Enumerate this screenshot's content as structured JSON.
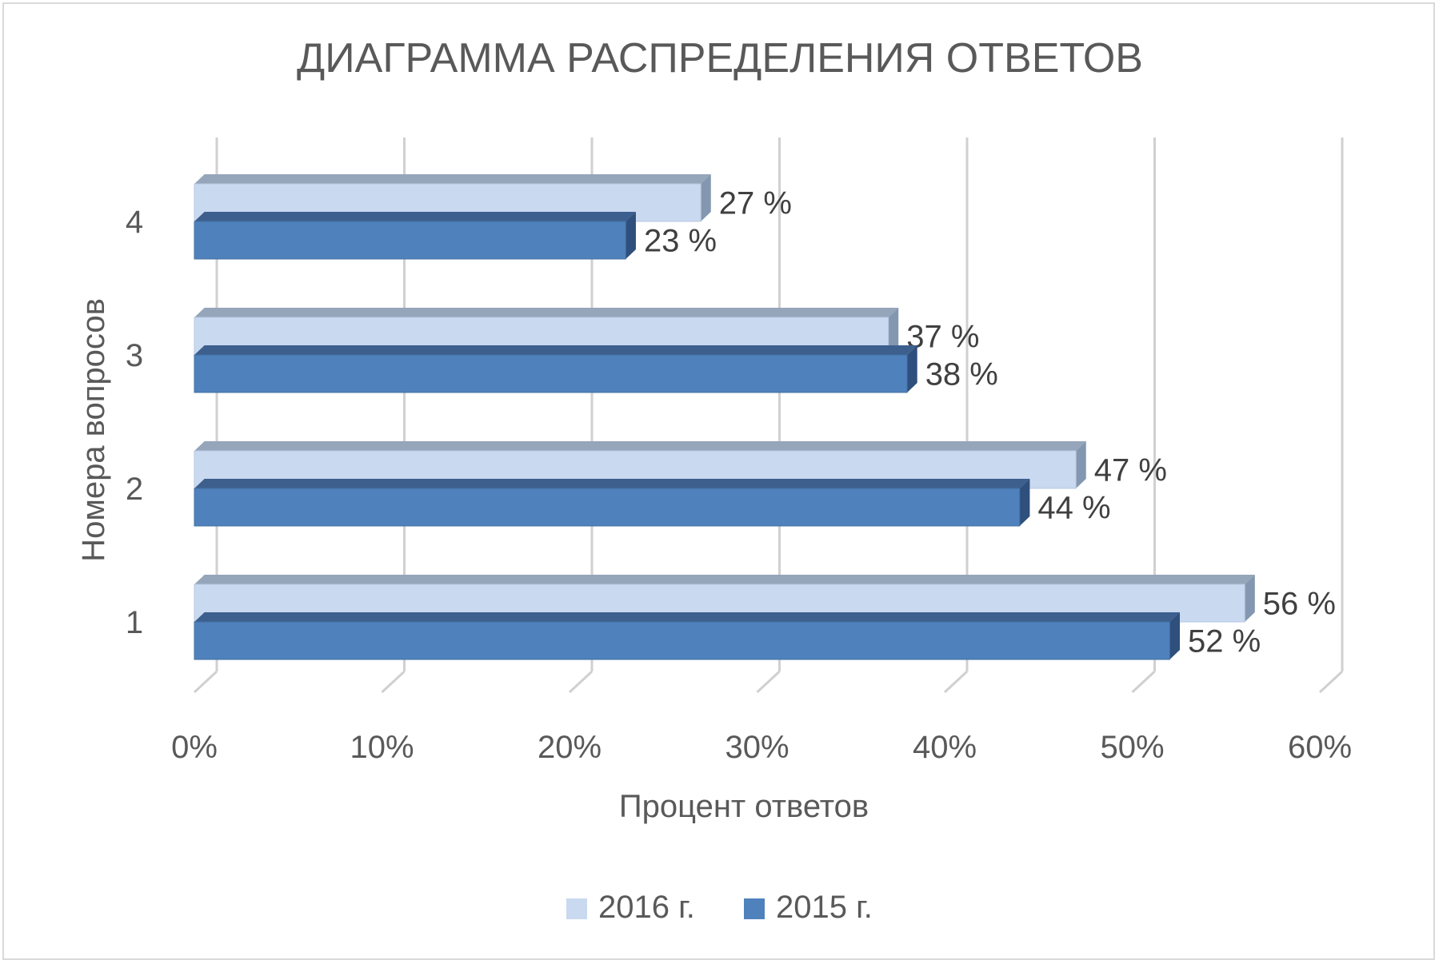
{
  "chart_data": {
    "type": "bar",
    "orientation": "horizontal",
    "style": "3d",
    "title": "ДИАГРАММА РАСПРЕДЕЛЕНИЯ ОТВЕТОВ",
    "xlabel": "Процент ответов",
    "ylabel": "Номера вопросов",
    "categories": [
      "1",
      "2",
      "3",
      "4"
    ],
    "xlim": [
      0,
      60
    ],
    "x_ticks": [
      "0%",
      "10%",
      "20%",
      "30%",
      "40%",
      "50%",
      "60%"
    ],
    "grid": true,
    "legend_position": "bottom",
    "series": [
      {
        "name": "2016 г.",
        "values": [
          56,
          47,
          37,
          27
        ],
        "labels": [
          "56 %",
          "47 %",
          "37 %",
          "27 %"
        ],
        "color": "#c9d9f0"
      },
      {
        "name": "2015 г.",
        "values": [
          52,
          44,
          38,
          23
        ],
        "labels": [
          "52 %",
          "44 %",
          "38 %",
          "23 %"
        ],
        "color": "#4f81bd"
      }
    ]
  }
}
